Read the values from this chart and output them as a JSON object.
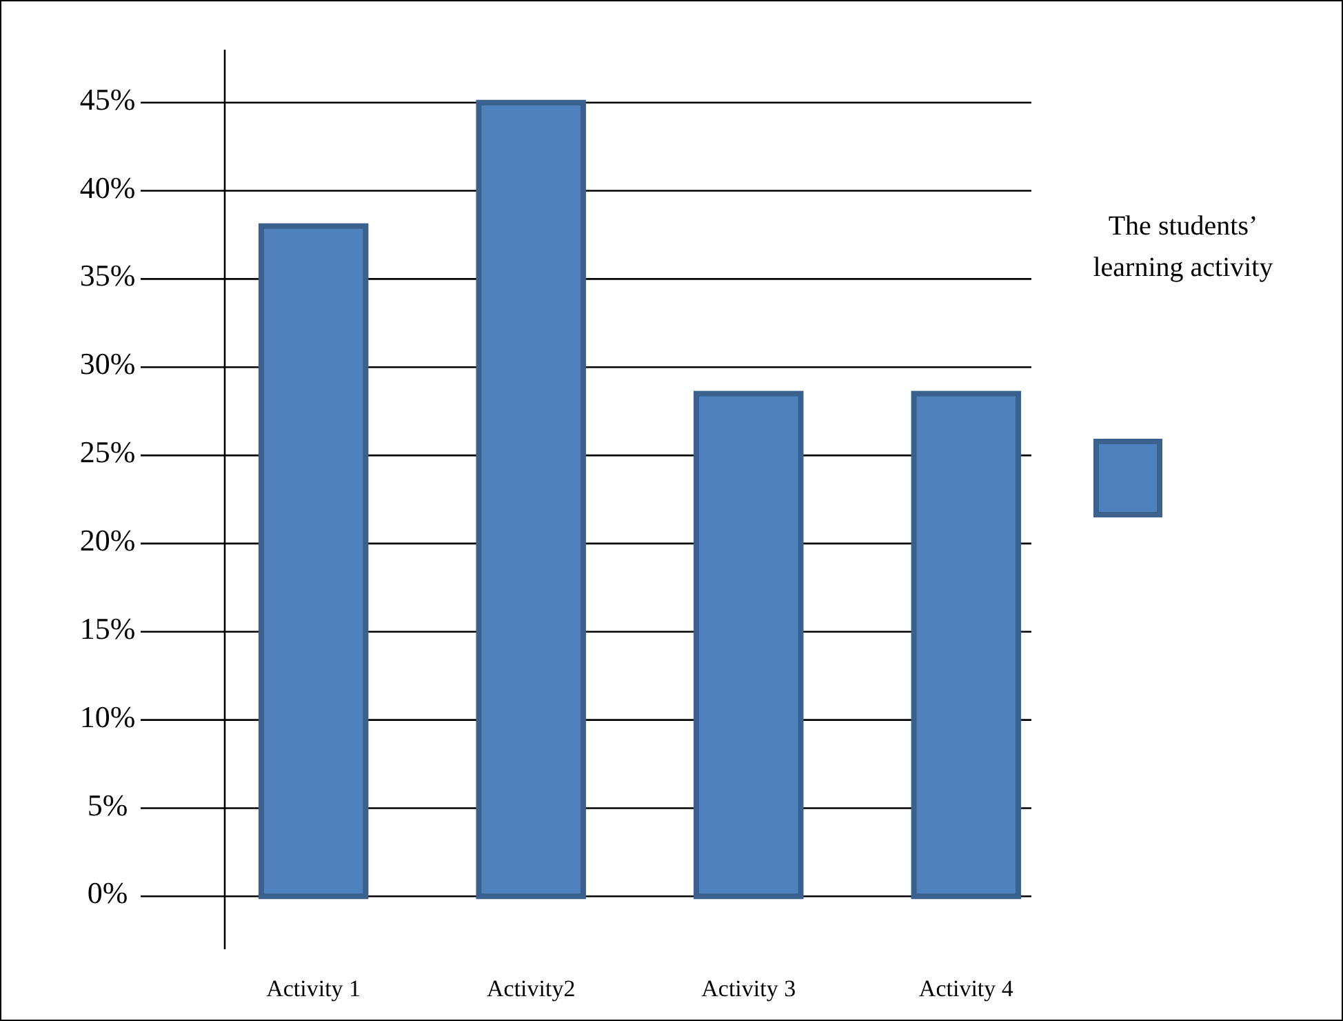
{
  "chart_data": {
    "type": "bar",
    "categories": [
      "Activity 1",
      "Activity2",
      "Activity 3",
      "Activity 4"
    ],
    "series": [
      {
        "name": "The students’ learning activity",
        "color": "#4f81bd",
        "values": [
          38,
          45,
          28.5,
          28.5
        ]
      }
    ],
    "ylim": [
      -3,
      48
    ],
    "yticks": [
      {
        "value": 0,
        "label": "0%"
      },
      {
        "value": 5,
        "label": "5%"
      },
      {
        "value": 10,
        "label": "10%"
      },
      {
        "value": 15,
        "label": "15%"
      },
      {
        "value": 20,
        "label": "20%"
      },
      {
        "value": 25,
        "label": "25%"
      },
      {
        "value": 30,
        "label": "30%"
      },
      {
        "value": 35,
        "label": "35%"
      },
      {
        "value": 40,
        "label": "40%"
      },
      {
        "value": 45,
        "label": "45%"
      }
    ],
    "grid": "y",
    "legend": "right"
  }
}
